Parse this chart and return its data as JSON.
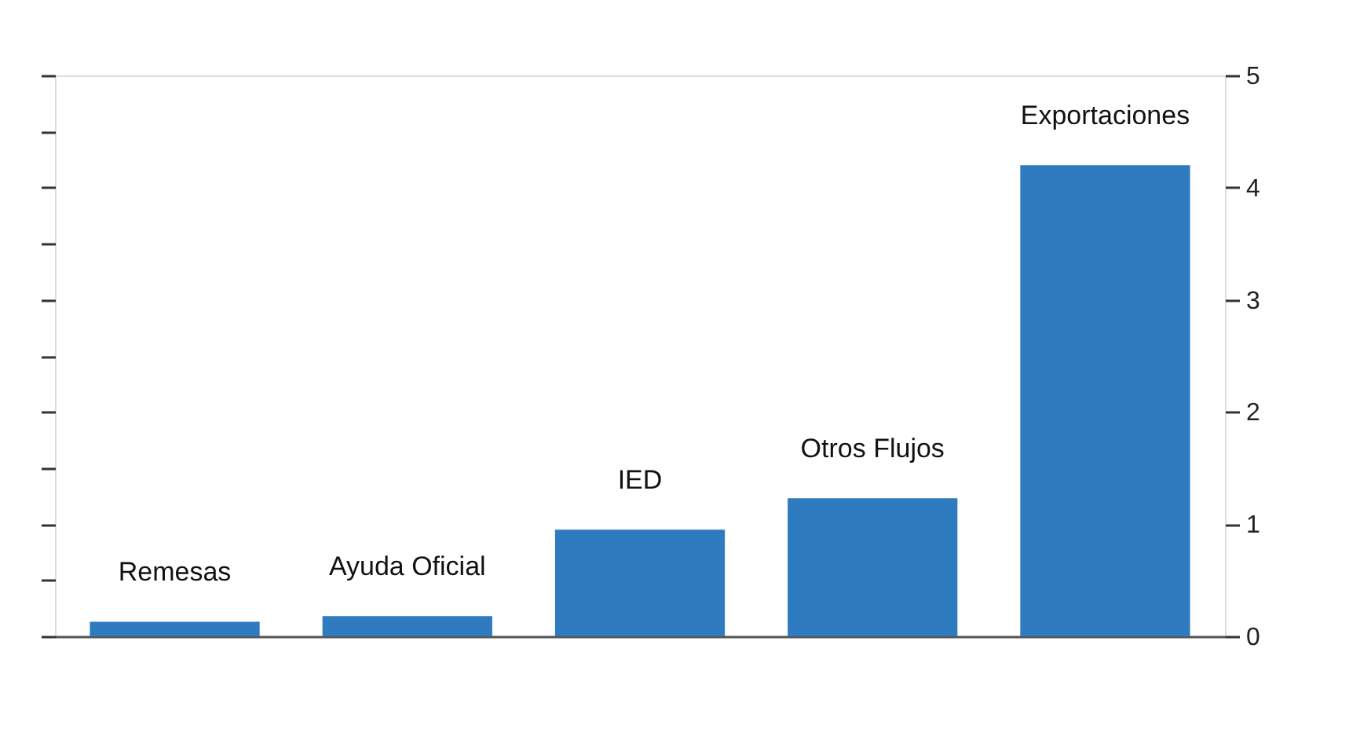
{
  "chart_data": {
    "type": "bar",
    "categories": [
      "Remesas",
      "Ayuda Oficial",
      "IED",
      "Otros Flujos",
      "Exportaciones"
    ],
    "values": [
      0.13,
      0.18,
      0.95,
      1.23,
      4.2
    ],
    "color": "#2e7bbf",
    "ylim": [
      0,
      5
    ],
    "yticks": [
      0,
      {
        "value": 0.5,
        "label": null
      },
      1,
      {
        "value": 1.5,
        "label": null
      },
      2,
      {
        "value": 2.5,
        "label": null
      },
      3,
      {
        "value": 3.5,
        "label": null
      },
      4,
      {
        "value": 4.5,
        "label": null
      },
      5
    ],
    "grid": false
  }
}
